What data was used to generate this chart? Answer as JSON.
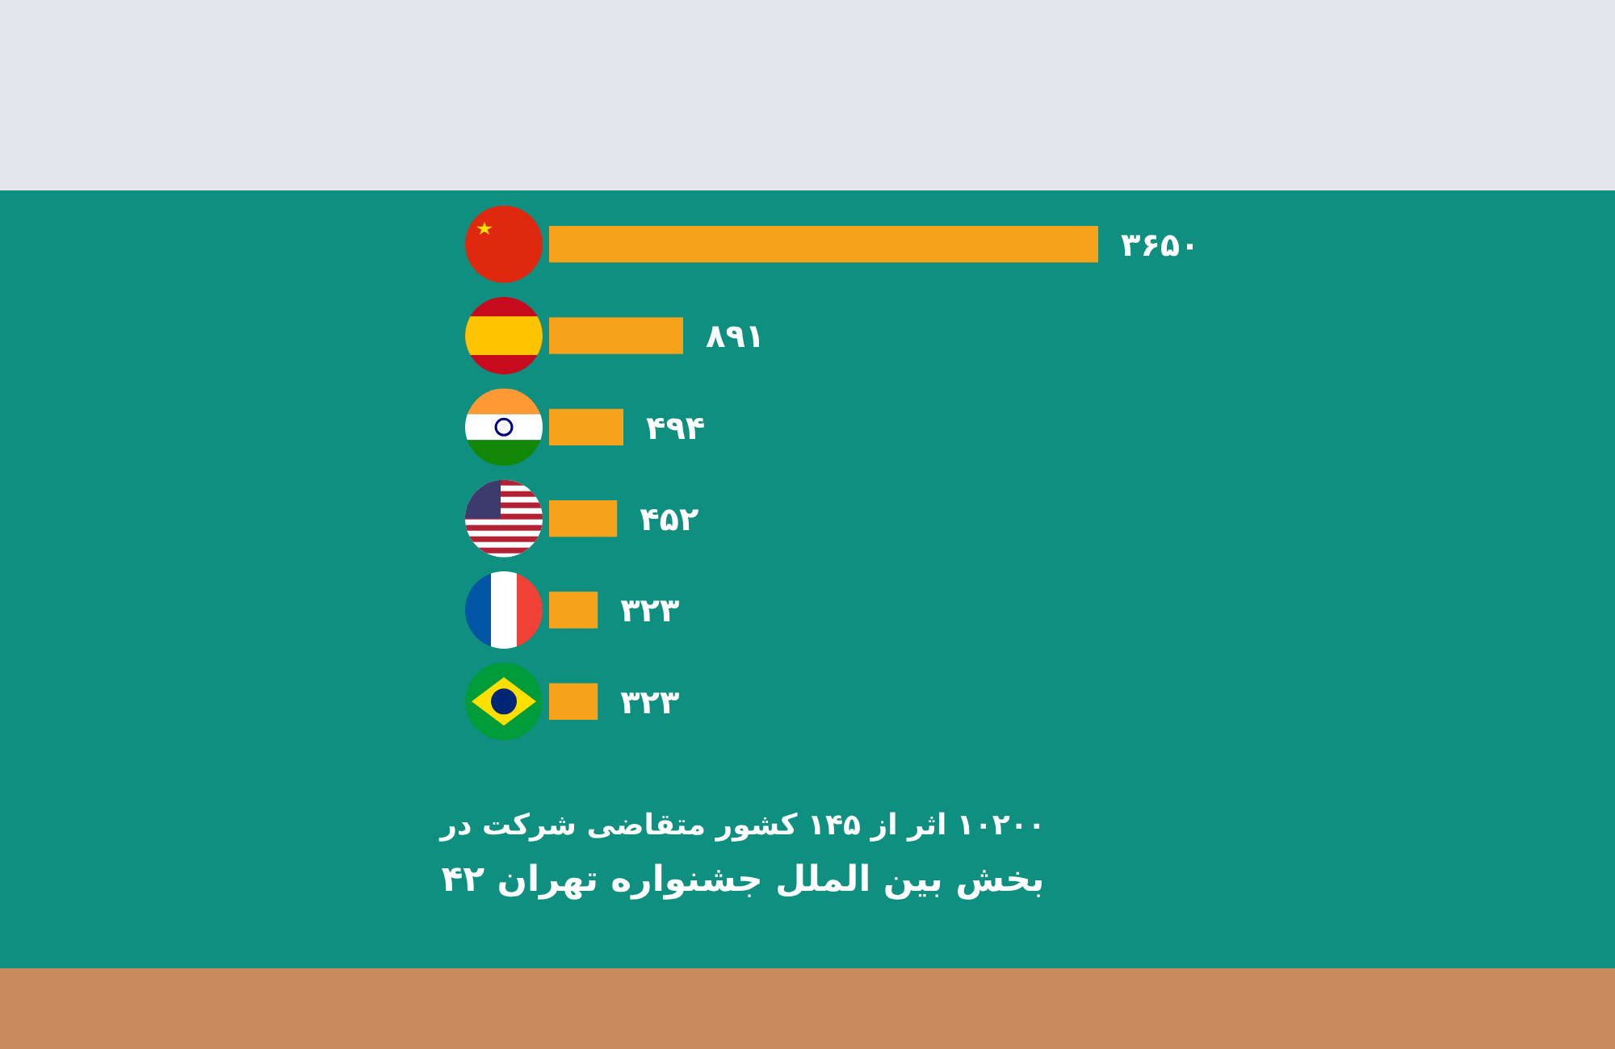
{
  "chart_data": {
    "type": "bar",
    "orientation": "horizontal",
    "categories": [
      null,
      null,
      null,
      null,
      null,
      null
    ],
    "values": [
      3650,
      891,
      494,
      452,
      323,
      323
    ],
    "value_labels": [
      "۳۶۵۰",
      "۸۹۱",
      "۴۹۴",
      "۴۵۲",
      "۳۲۳",
      "۳۲۳"
    ],
    "color": "#f7a21b",
    "annotations": [
      "۱۰۲۰۰ اثر از ۱۴۵ کشور متقاضی شرکت در",
      "بخش بین الملل جشنواره تهران ۴۲"
    ]
  }
}
